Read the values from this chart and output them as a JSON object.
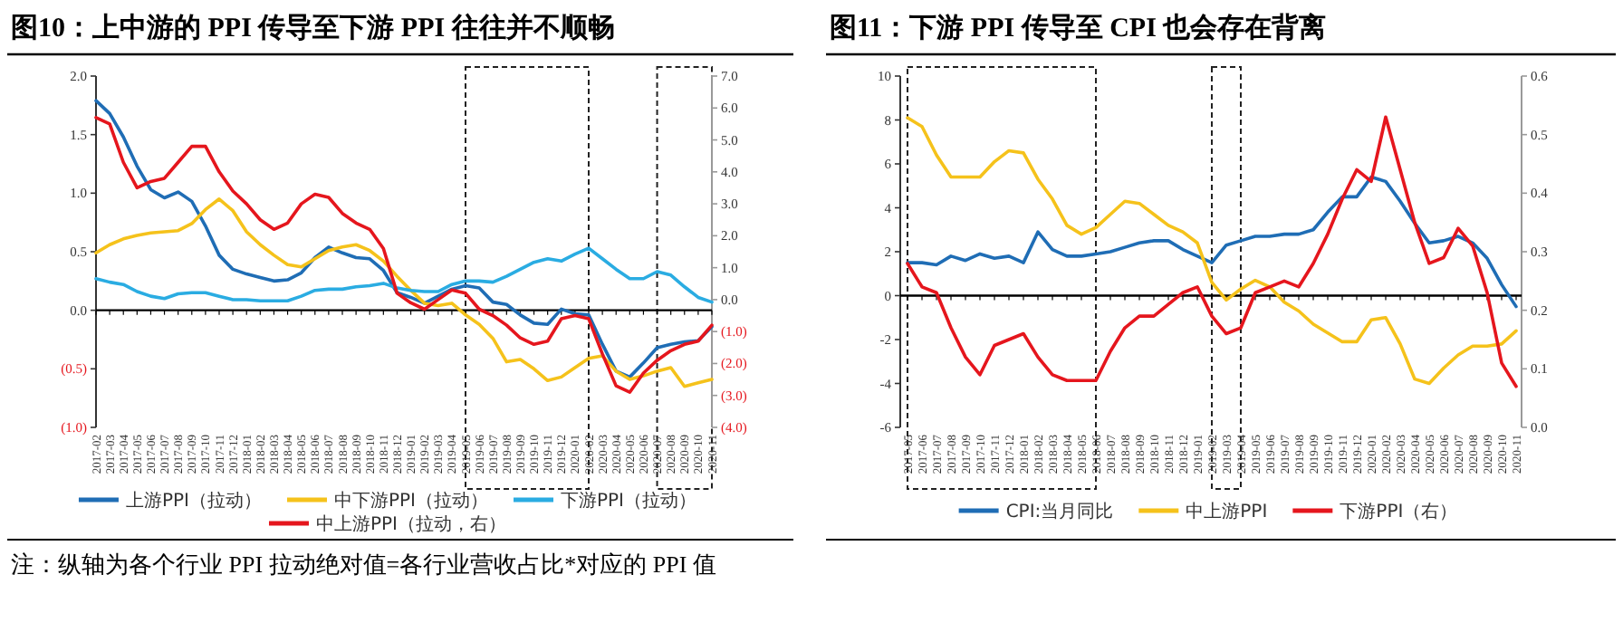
{
  "chart_data": [
    {
      "type": "line",
      "title": "图10：上中游的 PPI 传导至下游 PPI 往往并不顺畅",
      "categories": [
        "2017-02",
        "2017-03",
        "2017-04",
        "2017-05",
        "2017-06",
        "2017-07",
        "2017-08",
        "2017-09",
        "2017-10",
        "2017-11",
        "2017-12",
        "2018-01",
        "2018-02",
        "2018-03",
        "2018-04",
        "2018-05",
        "2018-06",
        "2018-07",
        "2018-08",
        "2018-09",
        "2018-10",
        "2018-11",
        "2018-12",
        "2019-01",
        "2019-02",
        "2019-03",
        "2019-04",
        "2019-05",
        "2019-06",
        "2019-07",
        "2019-08",
        "2019-09",
        "2019-10",
        "2019-11",
        "2019-12",
        "2020-01",
        "2020-02",
        "2020-03",
        "2020-04",
        "2020-05",
        "2020-06",
        "2020-07",
        "2020-08",
        "2020-09",
        "2020-10",
        "2020-11"
      ],
      "series": [
        {
          "name": "上游PPI（拉动）",
          "color": "#1f6db5",
          "values": [
            1.79,
            1.68,
            1.48,
            1.23,
            1.03,
            0.96,
            1.01,
            0.93,
            0.72,
            0.47,
            0.35,
            0.31,
            0.28,
            0.25,
            0.26,
            0.32,
            0.45,
            0.54,
            0.49,
            0.45,
            0.44,
            0.34,
            0.15,
            0.11,
            0.06,
            0.12,
            0.18,
            0.21,
            0.19,
            0.07,
            0.05,
            -0.04,
            -0.11,
            -0.12,
            0.01,
            -0.03,
            -0.04,
            -0.29,
            -0.52,
            -0.57,
            -0.45,
            -0.32,
            -0.29,
            -0.27,
            -0.26,
            -0.14
          ]
        },
        {
          "name": "中下游PPI（拉动）",
          "color": "#f5c21b",
          "values": [
            0.49,
            0.56,
            0.61,
            0.64,
            0.66,
            0.67,
            0.68,
            0.74,
            0.86,
            0.95,
            0.85,
            0.67,
            0.56,
            0.47,
            0.39,
            0.37,
            0.44,
            0.51,
            0.54,
            0.56,
            0.51,
            0.42,
            0.29,
            0.17,
            0.06,
            0.04,
            0.06,
            -0.04,
            -0.12,
            -0.24,
            -0.44,
            -0.42,
            -0.5,
            -0.6,
            -0.57,
            -0.49,
            -0.41,
            -0.39,
            -0.52,
            -0.59,
            -0.56,
            -0.52,
            -0.49,
            -0.65,
            -0.62,
            -0.59
          ]
        },
        {
          "name": "下游PPI（拉动）",
          "color": "#2aace2",
          "values": [
            0.27,
            0.24,
            0.22,
            0.16,
            0.12,
            0.1,
            0.14,
            0.15,
            0.15,
            0.12,
            0.09,
            0.09,
            0.08,
            0.08,
            0.08,
            0.12,
            0.17,
            0.18,
            0.18,
            0.2,
            0.21,
            0.23,
            0.19,
            0.17,
            0.16,
            0.16,
            0.22,
            0.25,
            0.25,
            0.24,
            0.29,
            0.35,
            0.41,
            0.44,
            0.42,
            0.48,
            0.53,
            0.44,
            0.35,
            0.27,
            0.27,
            0.33,
            0.3,
            0.2,
            0.11,
            0.07
          ]
        },
        {
          "name": "中上游PPI（拉动，右）",
          "color": "#e5161d",
          "axis": "y2",
          "values": [
            5.7,
            5.5,
            4.3,
            3.5,
            3.7,
            3.8,
            4.3,
            4.8,
            4.8,
            4.0,
            3.4,
            3.0,
            2.5,
            2.2,
            2.4,
            3.0,
            3.3,
            3.2,
            2.7,
            2.4,
            2.2,
            1.6,
            0.2,
            -0.1,
            -0.3,
            0.0,
            0.3,
            0.2,
            -0.3,
            -0.5,
            -0.8,
            -1.2,
            -1.4,
            -1.3,
            -0.6,
            -0.5,
            -0.6,
            -1.7,
            -2.7,
            -2.9,
            -2.3,
            -1.9,
            -1.6,
            -1.4,
            -1.3,
            -0.8
          ]
        }
      ],
      "ylim": [
        -1,
        2
      ],
      "yticks": [
        {
          "value": -1,
          "label": "(1.0)"
        },
        {
          "value": -0.5,
          "label": "(0.5)"
        },
        {
          "value": 0,
          "label": "0.0"
        },
        0.5,
        {
          "value": 1,
          "label": "1.0"
        },
        1.5,
        {
          "value": 2,
          "label": "2.0"
        }
      ],
      "y2lim": [
        -4,
        7
      ],
      "y2ticks": [
        {
          "value": -4,
          "label": "(4.0)"
        },
        {
          "value": -3,
          "label": "(3.0)"
        },
        {
          "value": -2,
          "label": "(2.0)"
        },
        {
          "value": -1,
          "label": "(1.0)"
        },
        {
          "value": 0,
          "label": "0.0"
        },
        {
          "value": 1,
          "label": "1.0"
        },
        {
          "value": 2,
          "label": "2.0"
        },
        {
          "value": 3,
          "label": "3.0"
        },
        {
          "value": 4,
          "label": "4.0"
        },
        {
          "value": 5,
          "label": "5.0"
        },
        {
          "value": 6,
          "label": "6.0"
        },
        {
          "value": 7,
          "label": "7.0"
        }
      ],
      "bands": [
        {
          "axis": "x",
          "from": "2019-05",
          "to": "2020-02"
        },
        {
          "axis": "x",
          "from": "2020-07",
          "to": "2020-11"
        }
      ],
      "legend": "bottom",
      "annotations": [
        "注：纵轴为各个行业 PPI 拉动绝对值=各行业营收占比*对应的 PPI 值"
      ]
    },
    {
      "type": "line",
      "title": "图11：下游 PPI 传导至 CPI 也会存在背离",
      "categories": [
        "2017-05",
        "2017-06",
        "2017-07",
        "2017-08",
        "2017-09",
        "2017-10",
        "2017-11",
        "2017-12",
        "2018-01",
        "2018-02",
        "2018-03",
        "2018-04",
        "2018-05",
        "2018-06",
        "2018-07",
        "2018-08",
        "2018-09",
        "2018-10",
        "2018-11",
        "2018-12",
        "2019-01",
        "2019-02",
        "2019-03",
        "2019-04",
        "2019-05",
        "2019-06",
        "2019-07",
        "2019-08",
        "2019-09",
        "2019-10",
        "2019-11",
        "2019-12",
        "2020-01",
        "2020-02",
        "2020-03",
        "2020-04",
        "2020-05",
        "2020-06",
        "2020-07",
        "2020-08",
        "2020-09",
        "2020-10",
        "2020-11"
      ],
      "series": [
        {
          "name": "CPI:当月同比",
          "color": "#1f6db5",
          "values": [
            1.5,
            1.5,
            1.4,
            1.8,
            1.6,
            1.9,
            1.7,
            1.8,
            1.5,
            2.9,
            2.1,
            1.8,
            1.8,
            1.9,
            2.0,
            2.2,
            2.4,
            2.5,
            2.5,
            2.1,
            1.8,
            1.5,
            2.3,
            2.5,
            2.7,
            2.7,
            2.8,
            2.8,
            3.0,
            3.8,
            4.5,
            4.5,
            5.4,
            5.2,
            4.3,
            3.3,
            2.4,
            2.5,
            2.7,
            2.4,
            1.7,
            0.5,
            -0.5
          ]
        },
        {
          "name": "中上游PPI",
          "color": "#f5c21b",
          "values": [
            8.1,
            7.7,
            6.4,
            5.4,
            5.4,
            5.4,
            6.1,
            6.6,
            6.5,
            5.3,
            4.4,
            3.2,
            2.8,
            3.1,
            3.7,
            4.3,
            4.2,
            3.7,
            3.2,
            2.9,
            2.4,
            0.6,
            -0.2,
            0.3,
            0.7,
            0.4,
            -0.3,
            -0.7,
            -1.3,
            -1.7,
            -2.1,
            -2.1,
            -1.1,
            -1.0,
            -2.2,
            -3.8,
            -4.0,
            -3.3,
            -2.7,
            -2.3,
            -2.3,
            -2.2,
            -1.6
          ]
        },
        {
          "name": "下游PPI（右）",
          "color": "#e5161d",
          "axis": "y2",
          "values": [
            0.28,
            0.24,
            0.23,
            0.17,
            0.12,
            0.09,
            0.14,
            0.15,
            0.16,
            0.12,
            0.09,
            0.08,
            0.08,
            0.08,
            0.13,
            0.17,
            0.19,
            0.19,
            0.21,
            0.23,
            0.24,
            0.19,
            0.16,
            0.17,
            0.23,
            0.24,
            0.25,
            0.24,
            0.28,
            0.33,
            0.39,
            0.44,
            0.42,
            0.53,
            0.44,
            0.35,
            0.28,
            0.29,
            0.34,
            0.31,
            0.23,
            0.11,
            0.07
          ]
        }
      ],
      "ylim": [
        -6,
        10
      ],
      "yticks": [
        -6,
        -4,
        -2,
        0,
        2,
        4,
        6,
        8,
        10
      ],
      "y2lim": [
        0,
        0.6
      ],
      "y2ticks": [
        {
          "value": 0,
          "label": "0.0"
        },
        0.1,
        0.2,
        0.3,
        0.4,
        0.5,
        0.6
      ],
      "bands": [
        {
          "axis": "x",
          "from": "2017-05",
          "to": "2018-06"
        },
        {
          "axis": "x",
          "from": "2019-02",
          "to": "2019-04"
        }
      ],
      "legend": "bottom"
    }
  ]
}
